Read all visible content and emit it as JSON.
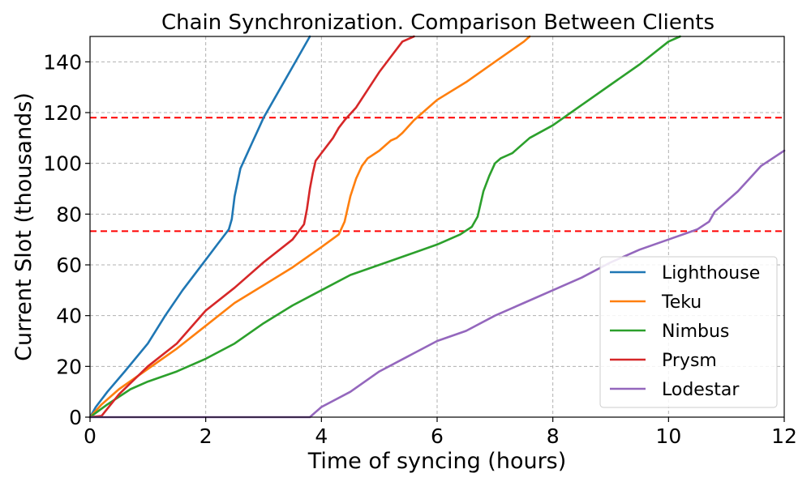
{
  "chart_data": {
    "type": "line",
    "title": "Chain Synchronization. Comparison Between Clients",
    "xlabel": "Time of syncing (hours)",
    "ylabel": "Current Slot (thousands)",
    "xlim": [
      0,
      12
    ],
    "ylim": [
      0,
      150
    ],
    "xticks": [
      0,
      2,
      4,
      6,
      8,
      10,
      12
    ],
    "yticks": [
      0,
      20,
      40,
      60,
      80,
      100,
      120,
      140
    ],
    "grid": true,
    "legend_position": "bottom-right",
    "hlines": [
      {
        "y": 73.3,
        "color": "#ff0000"
      },
      {
        "y": 118.0,
        "color": "#ff0000"
      }
    ],
    "series": [
      {
        "name": "Lighthouse",
        "color": "#1f77b4",
        "x": [
          0,
          0.1,
          0.3,
          0.6,
          1.0,
          1.3,
          1.6,
          2.0,
          2.2,
          2.4,
          2.45,
          2.5,
          2.6,
          2.7,
          2.8,
          2.9,
          3.0,
          3.2,
          3.5,
          3.8
        ],
        "y": [
          0,
          4,
          10,
          18,
          29,
          40,
          50,
          62,
          68,
          74,
          78,
          87,
          98,
          103,
          108,
          113,
          118,
          126,
          138,
          150
        ]
      },
      {
        "name": "Teku",
        "color": "#ff7f0e",
        "x": [
          0,
          0.2,
          0.5,
          1.0,
          1.5,
          2.0,
          2.5,
          3.0,
          3.5,
          4.0,
          4.3,
          4.4,
          4.5,
          4.6,
          4.7,
          4.8,
          5.0,
          5.2,
          5.3,
          5.4,
          5.6,
          5.8,
          6.0,
          6.5,
          7.0,
          7.5,
          7.6
        ],
        "y": [
          0,
          5,
          11,
          19,
          27,
          36,
          45,
          52,
          59,
          67,
          72,
          77,
          87,
          94,
          99,
          102,
          105,
          109,
          110,
          112,
          117,
          121,
          125,
          132,
          140,
          148,
          150
        ]
      },
      {
        "name": "Nimbus",
        "color": "#2ca02c",
        "x": [
          0,
          0.3,
          0.7,
          1.0,
          1.5,
          2.0,
          2.5,
          3.0,
          3.5,
          4.0,
          4.5,
          5.0,
          5.5,
          6.0,
          6.4,
          6.6,
          6.7,
          6.8,
          6.9,
          7.0,
          7.1,
          7.3,
          7.6,
          8.0,
          8.5,
          9.0,
          9.5,
          10.0,
          10.2
        ],
        "y": [
          0,
          5,
          11,
          14,
          18,
          23,
          29,
          37,
          44,
          50,
          56,
          60,
          64,
          68,
          72,
          75,
          79,
          89,
          95,
          100,
          102,
          104,
          110,
          115,
          123,
          131,
          139,
          148,
          150
        ]
      },
      {
        "name": "Prysm",
        "color": "#d62728",
        "x": [
          0,
          0.2,
          0.5,
          1.0,
          1.5,
          2.0,
          2.5,
          3.0,
          3.5,
          3.7,
          3.75,
          3.8,
          3.85,
          3.9,
          4.0,
          4.1,
          4.2,
          4.3,
          4.4,
          4.6,
          4.8,
          5.0,
          5.2,
          5.4,
          5.6
        ],
        "y": [
          0,
          0.5,
          9,
          20,
          29,
          42,
          51,
          61,
          70,
          76,
          82,
          90,
          96,
          101,
          104,
          107,
          110,
          114,
          117,
          122,
          129,
          136,
          142,
          148,
          150
        ]
      },
      {
        "name": "Lodestar",
        "color": "#9467bd",
        "x": [
          0,
          3.8,
          3.9,
          4.0,
          4.5,
          5.0,
          5.5,
          6.0,
          6.5,
          7.0,
          7.5,
          8.0,
          8.5,
          9.0,
          9.5,
          10.0,
          10.5,
          10.7,
          10.8,
          11.0,
          11.2,
          11.4,
          11.6,
          11.8,
          12.0
        ],
        "y": [
          0,
          0,
          2,
          4,
          10,
          18,
          24,
          30,
          34,
          40,
          45,
          50,
          55,
          61,
          66,
          70,
          74,
          77,
          81,
          85,
          89,
          94,
          99,
          102,
          105
        ]
      }
    ]
  }
}
